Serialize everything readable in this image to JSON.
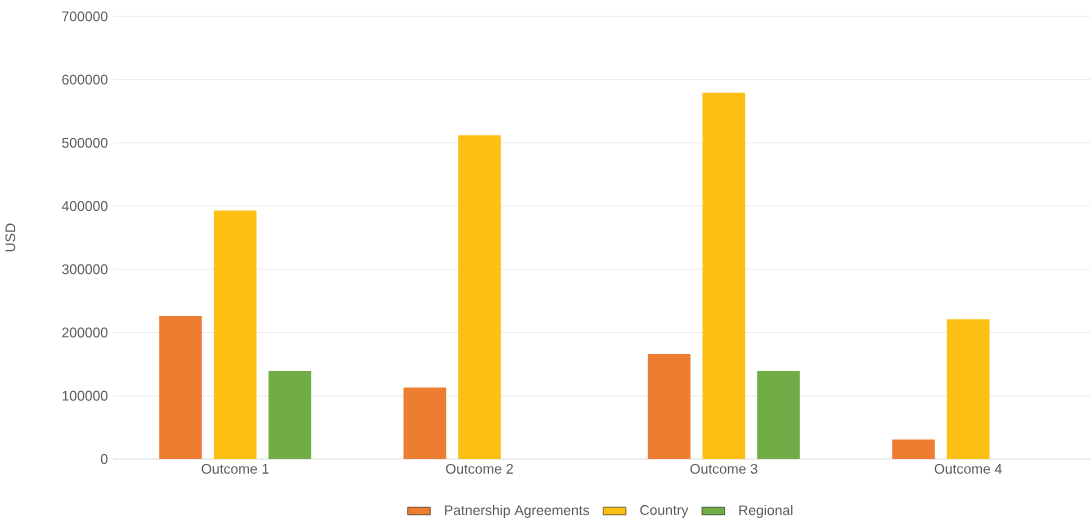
{
  "chart_data": {
    "type": "bar",
    "ylabel": "USD",
    "categories": [
      "Outcome 1",
      "Outcome 2",
      "Outcome 3",
      "Outcome 4"
    ],
    "series": [
      {
        "name": "Patnership Agreements",
        "color": "#ed7d31",
        "values": [
          226000,
          113000,
          166000,
          31000
        ]
      },
      {
        "name": "Country",
        "color": "#fbc011",
        "values": [
          393000,
          512000,
          579000,
          221000
        ]
      },
      {
        "name": "Regional",
        "color": "#70ad47",
        "values": [
          139000,
          null,
          139000,
          null
        ]
      }
    ],
    "ylim": [
      0,
      700000
    ],
    "yticks": [
      0,
      100000,
      200000,
      300000,
      400000,
      500000,
      600000,
      700000
    ],
    "grid": "y",
    "legend": "bottom"
  }
}
